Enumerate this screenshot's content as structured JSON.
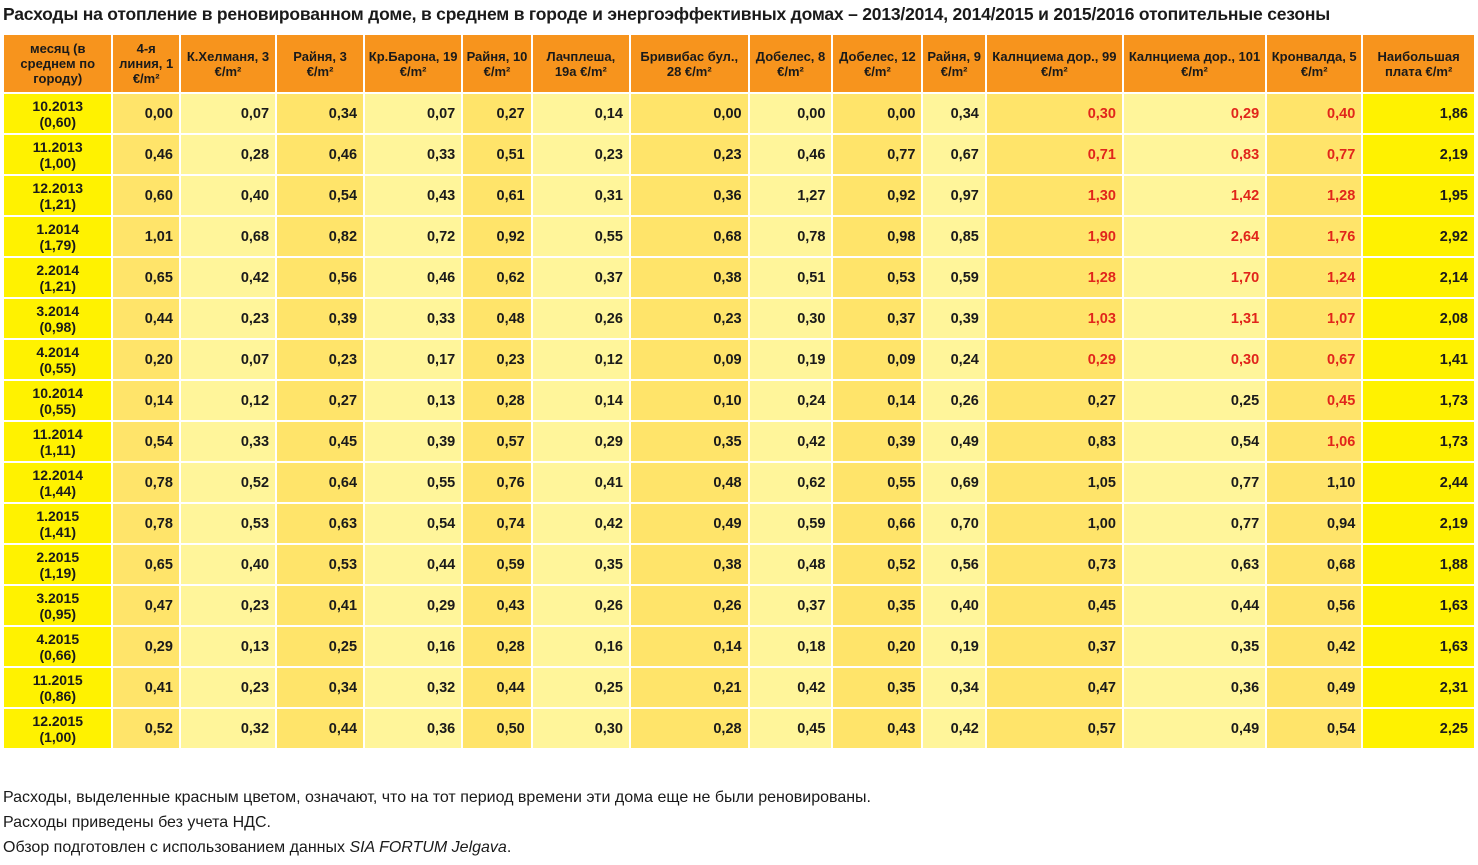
{
  "title": "Расходы на отопление в реновированном доме, в среднем в городе и энергоэффективных домах – 2013/2014, 2014/2015 и 2015/2016 отопительные сезоны",
  "columns": [
    "месяц (в среднем по городу)",
    "4-я линия, 1 €/m²",
    "К.Хелманя, 3 €/m²",
    "Райня, 3 €/m²",
    "Кр.Барона, 19 €/m²",
    "Райня, 10 €/m²",
    "Лачплеша, 19а €/m²",
    "Бривибас бул., 28 €/m²",
    "Добелес, 8 €/m²",
    "Добелес, 12 €/m²",
    "Райня, 9 €/m²",
    "Калнциема дор., 99 €/m²",
    "Калнциема дор., 101 €/m²",
    "Кронвалда, 5 €/m²",
    "Наибольшая плата €/m²"
  ],
  "rows": [
    {
      "month": "10.2013",
      "avg": "(0,60)",
      "values": [
        "0,00",
        "0,07",
        "0,34",
        "0,07",
        "0,27",
        "0,14",
        "0,00",
        "0,00",
        "0,00",
        "0,34",
        "0,30",
        "0,29",
        "0,40",
        "1,86"
      ],
      "red": [
        10,
        11,
        12
      ]
    },
    {
      "month": "11.2013",
      "avg": "(1,00)",
      "values": [
        "0,46",
        "0,28",
        "0,46",
        "0,33",
        "0,51",
        "0,23",
        "0,23",
        "0,46",
        "0,77",
        "0,67",
        "0,71",
        "0,83",
        "0,77",
        "2,19"
      ],
      "red": [
        10,
        11,
        12
      ]
    },
    {
      "month": "12.2013",
      "avg": "(1,21)",
      "values": [
        "0,60",
        "0,40",
        "0,54",
        "0,43",
        "0,61",
        "0,31",
        "0,36",
        "1,27",
        "0,92",
        "0,97",
        "1,30",
        "1,42",
        "1,28",
        "1,95"
      ],
      "red": [
        10,
        11,
        12
      ]
    },
    {
      "month": "1.2014",
      "avg": "(1,79)",
      "values": [
        "1,01",
        "0,68",
        "0,82",
        "0,72",
        "0,92",
        "0,55",
        "0,68",
        "0,78",
        "0,98",
        "0,85",
        "1,90",
        "2,64",
        "1,76",
        "2,92"
      ],
      "red": [
        10,
        11,
        12
      ]
    },
    {
      "month": "2.2014",
      "avg": "(1,21)",
      "values": [
        "0,65",
        "0,42",
        "0,56",
        "0,46",
        "0,62",
        "0,37",
        "0,38",
        "0,51",
        "0,53",
        "0,59",
        "1,28",
        "1,70",
        "1,24",
        "2,14"
      ],
      "red": [
        10,
        11,
        12
      ]
    },
    {
      "month": "3.2014",
      "avg": "(0,98)",
      "values": [
        "0,44",
        "0,23",
        "0,39",
        "0,33",
        "0,48",
        "0,26",
        "0,23",
        "0,30",
        "0,37",
        "0,39",
        "1,03",
        "1,31",
        "1,07",
        "2,08"
      ],
      "red": [
        10,
        11,
        12
      ]
    },
    {
      "month": "4.2014",
      "avg": "(0,55)",
      "values": [
        "0,20",
        "0,07",
        "0,23",
        "0,17",
        "0,23",
        "0,12",
        "0,09",
        "0,19",
        "0,09",
        "0,24",
        "0,29",
        "0,30",
        "0,67",
        "1,41"
      ],
      "red": [
        10,
        11,
        12
      ]
    },
    {
      "month": "10.2014",
      "avg": "(0,55)",
      "values": [
        "0,14",
        "0,12",
        "0,27",
        "0,13",
        "0,28",
        "0,14",
        "0,10",
        "0,24",
        "0,14",
        "0,26",
        "0,27",
        "0,25",
        "0,45",
        "1,73"
      ],
      "red": [
        12
      ]
    },
    {
      "month": "11.2014",
      "avg": "(1,11)",
      "values": [
        "0,54",
        "0,33",
        "0,45",
        "0,39",
        "0,57",
        "0,29",
        "0,35",
        "0,42",
        "0,39",
        "0,49",
        "0,83",
        "0,54",
        "1,06",
        "1,73"
      ],
      "red": [
        12
      ]
    },
    {
      "month": "12.2014",
      "avg": "(1,44)",
      "values": [
        "0,78",
        "0,52",
        "0,64",
        "0,55",
        "0,76",
        "0,41",
        "0,48",
        "0,62",
        "0,55",
        "0,69",
        "1,05",
        "0,77",
        "1,10",
        "2,44"
      ],
      "red": []
    },
    {
      "month": "1.2015",
      "avg": "(1,41)",
      "values": [
        "0,78",
        "0,53",
        "0,63",
        "0,54",
        "0,74",
        "0,42",
        "0,49",
        "0,59",
        "0,66",
        "0,70",
        "1,00",
        "0,77",
        "0,94",
        "2,19"
      ],
      "red": []
    },
    {
      "month": "2.2015",
      "avg": "(1,19)",
      "values": [
        "0,65",
        "0,40",
        "0,53",
        "0,44",
        "0,59",
        "0,35",
        "0,38",
        "0,48",
        "0,52",
        "0,56",
        "0,73",
        "0,63",
        "0,68",
        "1,88"
      ],
      "red": []
    },
    {
      "month": "3.2015",
      "avg": "(0,95)",
      "values": [
        "0,47",
        "0,23",
        "0,41",
        "0,29",
        "0,43",
        "0,26",
        "0,26",
        "0,37",
        "0,35",
        "0,40",
        "0,45",
        "0,44",
        "0,56",
        "1,63"
      ],
      "red": []
    },
    {
      "month": "4.2015",
      "avg": "(0,66)",
      "values": [
        "0,29",
        "0,13",
        "0,25",
        "0,16",
        "0,28",
        "0,16",
        "0,14",
        "0,18",
        "0,20",
        "0,19",
        "0,37",
        "0,35",
        "0,42",
        "1,63"
      ],
      "red": []
    },
    {
      "month": "11.2015",
      "avg": "(0,86)",
      "values": [
        "0,41",
        "0,23",
        "0,34",
        "0,32",
        "0,44",
        "0,25",
        "0,21",
        "0,42",
        "0,35",
        "0,34",
        "0,47",
        "0,36",
        "0,49",
        "2,31"
      ],
      "red": []
    },
    {
      "month": "12.2015",
      "avg": "(1,00)",
      "values": [
        "0,52",
        "0,32",
        "0,44",
        "0,36",
        "0,50",
        "0,30",
        "0,28",
        "0,45",
        "0,43",
        "0,42",
        "0,57",
        "0,49",
        "0,54",
        "2,25"
      ],
      "red": []
    }
  ],
  "notes": {
    "red_note": "Расходы, выделенные красным цветом, означают, что на тот период времени эти дома еще не были реновированы.",
    "vat_note": "Расходы приведены без учета НДС.",
    "source_prefix": "Обзор подготовлен с использованием данных ",
    "source_name": "SIA FORTUM Jelgava",
    "source_suffix": "."
  },
  "colors": {
    "header": "#f7941d",
    "month_col": "#fff200",
    "shade_a": "#ffe46a",
    "shade_b": "#fff59a",
    "max_col": "#fff200",
    "red_text": "#e1251b"
  }
}
